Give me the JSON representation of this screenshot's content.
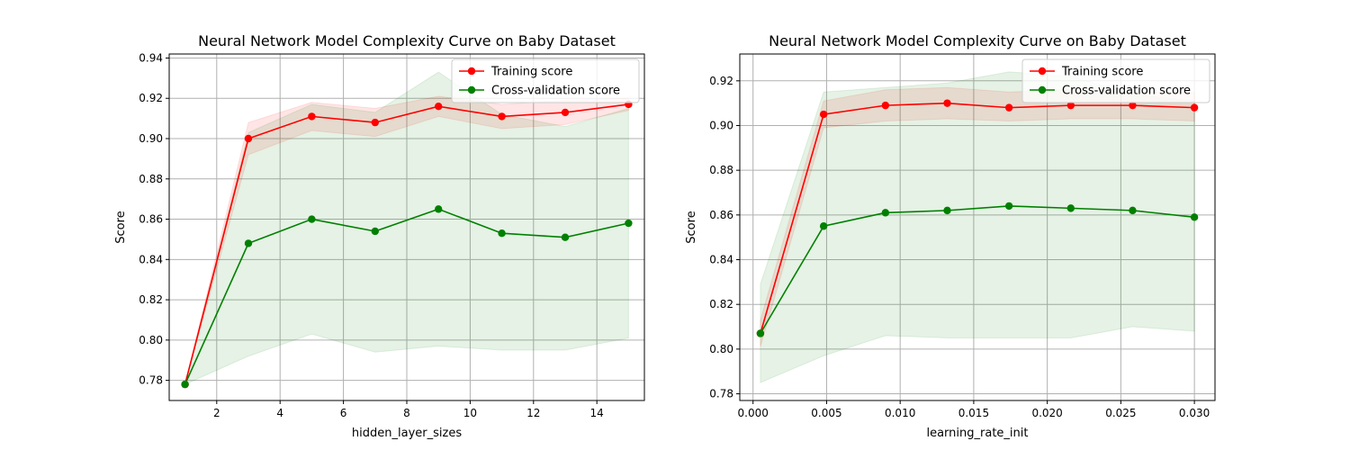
{
  "chart_data": [
    {
      "type": "line",
      "title": "Neural Network Model Complexity Curve on Baby Dataset",
      "xlabel": "hidden_layer_sizes",
      "ylabel": "Score",
      "xlim": [
        0.5,
        15.5
      ],
      "ylim": [
        0.77,
        0.942
      ],
      "xticks": [
        2,
        4,
        6,
        8,
        10,
        12,
        14
      ],
      "xtick_labels": [
        "2",
        "4",
        "6",
        "8",
        "10",
        "12",
        "14"
      ],
      "yticks": [
        0.78,
        0.8,
        0.82,
        0.84,
        0.86,
        0.88,
        0.9,
        0.92,
        0.94
      ],
      "ytick_labels": [
        "0.78",
        "0.80",
        "0.82",
        "0.84",
        "0.86",
        "0.88",
        "0.90",
        "0.92",
        "0.94"
      ],
      "grid": true,
      "legend_position": "top-right",
      "x": [
        1,
        3,
        5,
        7,
        9,
        11,
        13,
        15
      ],
      "series": [
        {
          "name": "Training score",
          "color": "#ff0000",
          "values": [
            0.778,
            0.9,
            0.911,
            0.908,
            0.916,
            0.911,
            0.913,
            0.917
          ],
          "lower": [
            0.778,
            0.892,
            0.904,
            0.901,
            0.911,
            0.905,
            0.907,
            0.914
          ],
          "upper": [
            0.778,
            0.908,
            0.918,
            0.915,
            0.921,
            0.917,
            0.919,
            0.92
          ]
        },
        {
          "name": "Cross-validation score",
          "color": "#008000",
          "values": [
            0.778,
            0.848,
            0.86,
            0.854,
            0.865,
            0.853,
            0.851,
            0.858
          ],
          "lower": [
            0.778,
            0.792,
            0.803,
            0.794,
            0.797,
            0.795,
            0.795,
            0.801
          ],
          "upper": [
            0.778,
            0.903,
            0.917,
            0.913,
            0.933,
            0.912,
            0.906,
            0.915
          ]
        }
      ]
    },
    {
      "type": "line",
      "title": "Neural Network Model Complexity Curve on Baby Dataset",
      "xlabel": "learning_rate_init",
      "ylabel": "Score",
      "xlim": [
        -0.0009,
        0.0314
      ],
      "ylim": [
        0.777,
        0.932
      ],
      "xticks": [
        0.0,
        0.005,
        0.01,
        0.015,
        0.02,
        0.025,
        0.03
      ],
      "xtick_labels": [
        "0.000",
        "0.005",
        "0.010",
        "0.015",
        "0.020",
        "0.025",
        "0.030"
      ],
      "yticks": [
        0.78,
        0.8,
        0.82,
        0.84,
        0.86,
        0.88,
        0.9,
        0.92
      ],
      "ytick_labels": [
        "0.78",
        "0.80",
        "0.82",
        "0.84",
        "0.86",
        "0.88",
        "0.90",
        "0.92"
      ],
      "grid": true,
      "legend_position": "top-right",
      "x": [
        0.0005,
        0.0048,
        0.009,
        0.0132,
        0.0174,
        0.0216,
        0.0258,
        0.03
      ],
      "series": [
        {
          "name": "Training score",
          "color": "#ff0000",
          "values": [
            0.807,
            0.905,
            0.909,
            0.91,
            0.908,
            0.909,
            0.909,
            0.908
          ],
          "lower": [
            0.801,
            0.899,
            0.902,
            0.903,
            0.902,
            0.903,
            0.903,
            0.902
          ],
          "upper": [
            0.813,
            0.911,
            0.916,
            0.917,
            0.915,
            0.916,
            0.915,
            0.915
          ]
        },
        {
          "name": "Cross-validation score",
          "color": "#008000",
          "values": [
            0.807,
            0.855,
            0.861,
            0.862,
            0.864,
            0.863,
            0.862,
            0.859
          ],
          "lower": [
            0.785,
            0.797,
            0.806,
            0.805,
            0.805,
            0.805,
            0.81,
            0.808
          ],
          "upper": [
            0.829,
            0.915,
            0.917,
            0.919,
            0.924,
            0.922,
            0.914,
            0.911
          ]
        }
      ]
    }
  ]
}
